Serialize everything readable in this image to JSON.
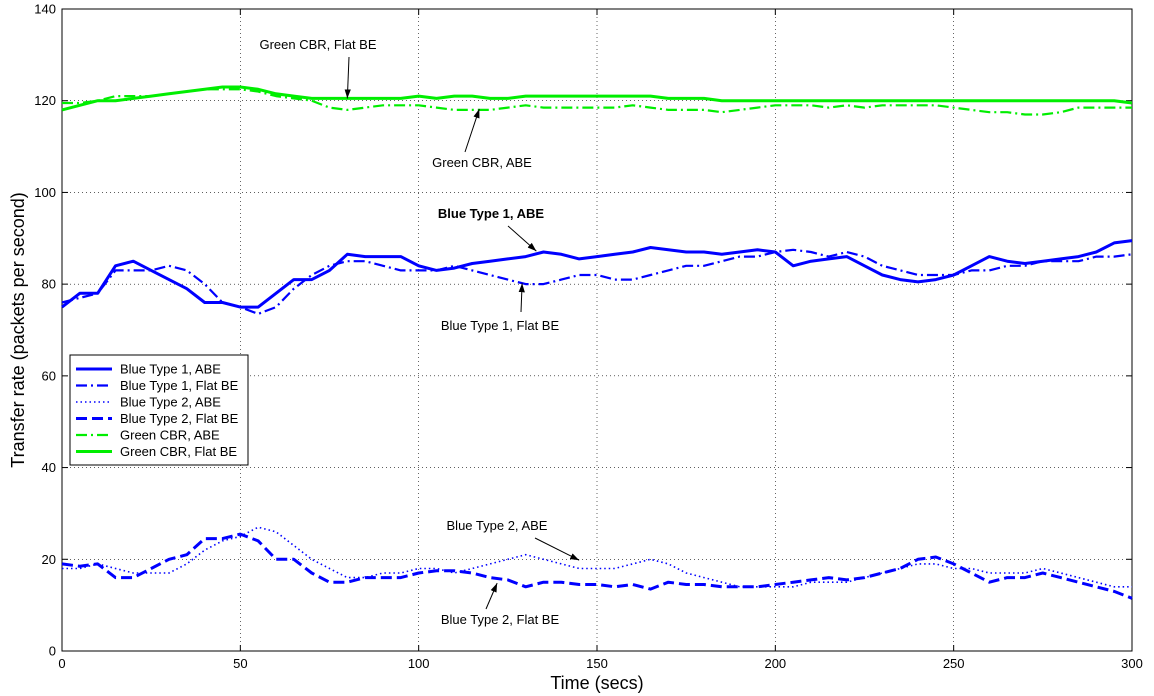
{
  "chart_data": {
    "type": "line",
    "xlabel": "Time (secs)",
    "ylabel": "Transfer rate (packets per second)",
    "xlim": [
      0,
      300
    ],
    "ylim": [
      0,
      140
    ],
    "xticks": [
      0,
      50,
      100,
      150,
      200,
      250,
      300
    ],
    "yticks": [
      0,
      20,
      40,
      60,
      80,
      100,
      120,
      140
    ],
    "grid": true,
    "legend_position": "middle-left",
    "colors": {
      "blue": "#0000ff",
      "green": "#00ee00"
    },
    "series": [
      {
        "name": "Blue Type 1, ABE",
        "color": "#0000ff",
        "style": "solid",
        "x": [
          0,
          5,
          10,
          15,
          20,
          25,
          30,
          35,
          40,
          45,
          50,
          55,
          60,
          65,
          70,
          75,
          80,
          85,
          90,
          95,
          100,
          105,
          110,
          115,
          120,
          125,
          130,
          135,
          140,
          145,
          150,
          155,
          160,
          165,
          170,
          175,
          180,
          185,
          190,
          195,
          200,
          205,
          210,
          215,
          220,
          225,
          230,
          235,
          240,
          245,
          250,
          255,
          260,
          265,
          270,
          275,
          280,
          285,
          290,
          295,
          300
        ],
        "y": [
          75,
          78,
          78,
          84,
          85,
          83,
          81,
          79,
          76,
          76,
          75,
          75,
          78,
          81,
          81,
          83,
          86.5,
          86,
          86,
          86,
          84,
          83,
          83.5,
          84.5,
          85,
          85.5,
          86,
          87,
          86.5,
          85.5,
          86,
          86.5,
          87,
          88,
          87.5,
          87,
          87,
          86.5,
          87,
          87.5,
          87,
          84,
          85,
          85.5,
          86,
          84,
          82,
          81,
          80.5,
          81,
          82,
          84,
          86,
          85,
          84.5,
          85,
          85.5,
          86,
          87,
          89,
          89.5
        ]
      },
      {
        "name": "Blue Type 1, Flat BE",
        "color": "#0000ff",
        "style": "dashdot",
        "x": [
          0,
          5,
          10,
          15,
          20,
          25,
          30,
          35,
          40,
          45,
          50,
          55,
          60,
          65,
          70,
          75,
          80,
          85,
          90,
          95,
          100,
          105,
          110,
          115,
          120,
          125,
          130,
          135,
          140,
          145,
          150,
          155,
          160,
          165,
          170,
          175,
          180,
          185,
          190,
          195,
          200,
          205,
          210,
          215,
          220,
          225,
          230,
          235,
          240,
          245,
          250,
          255,
          260,
          265,
          270,
          275,
          280,
          285,
          290,
          295,
          300
        ],
        "y": [
          76,
          77,
          78,
          83,
          83,
          83,
          84,
          83,
          80,
          76,
          75,
          73.5,
          75,
          79,
          82,
          84,
          85,
          85,
          84,
          83,
          83,
          83,
          84,
          83,
          82,
          81,
          80,
          80,
          81,
          82,
          82,
          81,
          81,
          82,
          83,
          84,
          84,
          85,
          86,
          86,
          87,
          87.5,
          87,
          86,
          87,
          86,
          84,
          83,
          82,
          82,
          82,
          83,
          83,
          84,
          84,
          85,
          85,
          85,
          86,
          86,
          86.5
        ]
      },
      {
        "name": "Blue Type 2, ABE",
        "color": "#0000ff",
        "style": "dotted",
        "x": [
          0,
          5,
          10,
          15,
          20,
          25,
          30,
          35,
          40,
          45,
          50,
          55,
          60,
          65,
          70,
          75,
          80,
          85,
          90,
          95,
          100,
          105,
          110,
          115,
          120,
          125,
          130,
          135,
          140,
          145,
          150,
          155,
          160,
          165,
          170,
          175,
          180,
          185,
          190,
          195,
          200,
          205,
          210,
          215,
          220,
          225,
          230,
          235,
          240,
          245,
          250,
          255,
          260,
          265,
          270,
          275,
          280,
          285,
          290,
          295,
          300
        ],
        "y": [
          18,
          18,
          19,
          18,
          17,
          17,
          17,
          19,
          22,
          24,
          25,
          27,
          26,
          23,
          20,
          18,
          16,
          16,
          17,
          17,
          18,
          18,
          17,
          18,
          19,
          20,
          21,
          20,
          19,
          18,
          18,
          18,
          19,
          20,
          19,
          17,
          16,
          15,
          14,
          14,
          14,
          14,
          15,
          15,
          15,
          16,
          17,
          18,
          19,
          19,
          18,
          18,
          17,
          17,
          17,
          18,
          17,
          16,
          15,
          14,
          14
        ]
      },
      {
        "name": "Blue Type 2, Flat BE",
        "color": "#0000ff",
        "style": "dashed",
        "x": [
          0,
          5,
          10,
          15,
          20,
          25,
          30,
          35,
          40,
          45,
          50,
          55,
          60,
          65,
          70,
          75,
          80,
          85,
          90,
          95,
          100,
          105,
          110,
          115,
          120,
          125,
          130,
          135,
          140,
          145,
          150,
          155,
          160,
          165,
          170,
          175,
          180,
          185,
          190,
          195,
          200,
          205,
          210,
          215,
          220,
          225,
          230,
          235,
          240,
          245,
          250,
          255,
          260,
          265,
          270,
          275,
          280,
          285,
          290,
          295,
          300
        ],
        "y": [
          19,
          18.5,
          19,
          16,
          16,
          18,
          20,
          21,
          24.5,
          24.5,
          25.5,
          24,
          20,
          20,
          17,
          15,
          15,
          16,
          16,
          16,
          17,
          17.5,
          17.5,
          17,
          16,
          15.5,
          14,
          15,
          15,
          14.5,
          14.5,
          14,
          14.5,
          13.5,
          15,
          14.5,
          14.5,
          14,
          14,
          14,
          14.5,
          15,
          15.5,
          16,
          15.5,
          16,
          17,
          18,
          20,
          20.5,
          19,
          17,
          15,
          16,
          16,
          17,
          16,
          15,
          14,
          13,
          11.5
        ]
      },
      {
        "name": "Green CBR, ABE",
        "color": "#00ee00",
        "style": "dashdot",
        "x": [
          0,
          5,
          10,
          15,
          20,
          25,
          30,
          35,
          40,
          45,
          50,
          55,
          60,
          65,
          70,
          75,
          80,
          85,
          90,
          95,
          100,
          105,
          110,
          115,
          120,
          125,
          130,
          135,
          140,
          145,
          150,
          155,
          160,
          165,
          170,
          175,
          180,
          185,
          190,
          195,
          200,
          205,
          210,
          215,
          220,
          225,
          230,
          235,
          240,
          245,
          250,
          255,
          260,
          265,
          270,
          275,
          280,
          285,
          290,
          295,
          300
        ],
        "y": [
          119.5,
          119.5,
          120,
          121,
          121,
          121,
          121.5,
          122,
          122.5,
          122.5,
          122.5,
          122,
          121,
          120.5,
          120,
          118.5,
          118,
          118.5,
          119,
          119,
          119,
          118.5,
          118,
          118,
          118,
          118.5,
          119,
          118.5,
          118.5,
          118.5,
          118.5,
          118.5,
          119,
          118.5,
          118,
          118,
          118,
          117.5,
          118,
          118.5,
          119,
          119,
          119,
          118.5,
          119,
          118.5,
          119,
          119,
          119,
          119,
          118.5,
          118,
          117.5,
          117.5,
          117,
          117,
          117.5,
          118.5,
          118.5,
          118.5,
          118.5
        ]
      },
      {
        "name": "Green CBR, Flat BE",
        "color": "#00ee00",
        "style": "solid",
        "x": [
          0,
          5,
          10,
          15,
          20,
          25,
          30,
          35,
          40,
          45,
          50,
          55,
          60,
          65,
          70,
          75,
          80,
          85,
          90,
          95,
          100,
          105,
          110,
          115,
          120,
          125,
          130,
          135,
          140,
          145,
          150,
          155,
          160,
          165,
          170,
          175,
          180,
          185,
          190,
          195,
          200,
          205,
          210,
          215,
          220,
          225,
          230,
          235,
          240,
          245,
          250,
          255,
          260,
          265,
          270,
          275,
          280,
          285,
          290,
          295,
          300
        ],
        "y": [
          118,
          119,
          120,
          120,
          120.5,
          121,
          121.5,
          122,
          122.5,
          123,
          123,
          122.5,
          121.5,
          121,
          120.5,
          120.5,
          120.5,
          120.5,
          120.5,
          120.5,
          121,
          120.5,
          121,
          121,
          120.5,
          120.5,
          121,
          121,
          121,
          121,
          121,
          121,
          121,
          121,
          120.5,
          120.5,
          120.5,
          120,
          120,
          120,
          120,
          120,
          120,
          120,
          120,
          120,
          120,
          120,
          120,
          120,
          120,
          120,
          120,
          120,
          120,
          120,
          120,
          120,
          120,
          120,
          119.5
        ]
      }
    ],
    "annotations": [
      {
        "id": "ann_green_flat",
        "text": "Green CBR, Flat BE",
        "target": [
          80,
          120.5
        ],
        "bold": false
      },
      {
        "id": "ann_green_abe",
        "text": "Green CBR, ABE",
        "target": [
          117,
          118.2
        ],
        "bold": false
      },
      {
        "id": "ann_blue1_abe",
        "text": "Blue Type 1, ABE",
        "target": [
          133,
          87.2
        ],
        "bold": true
      },
      {
        "id": "ann_blue1_flat",
        "text": "Blue Type 1, Flat BE",
        "target": [
          129,
          80.2
        ],
        "bold": false
      },
      {
        "id": "ann_blue2_abe",
        "text": "Blue Type 2, ABE",
        "target": [
          145,
          19.8
        ],
        "bold": false
      },
      {
        "id": "ann_blue2_flat",
        "text": "Blue Type 2, Flat BE",
        "target": [
          122,
          14.8
        ],
        "bold": false
      }
    ]
  }
}
